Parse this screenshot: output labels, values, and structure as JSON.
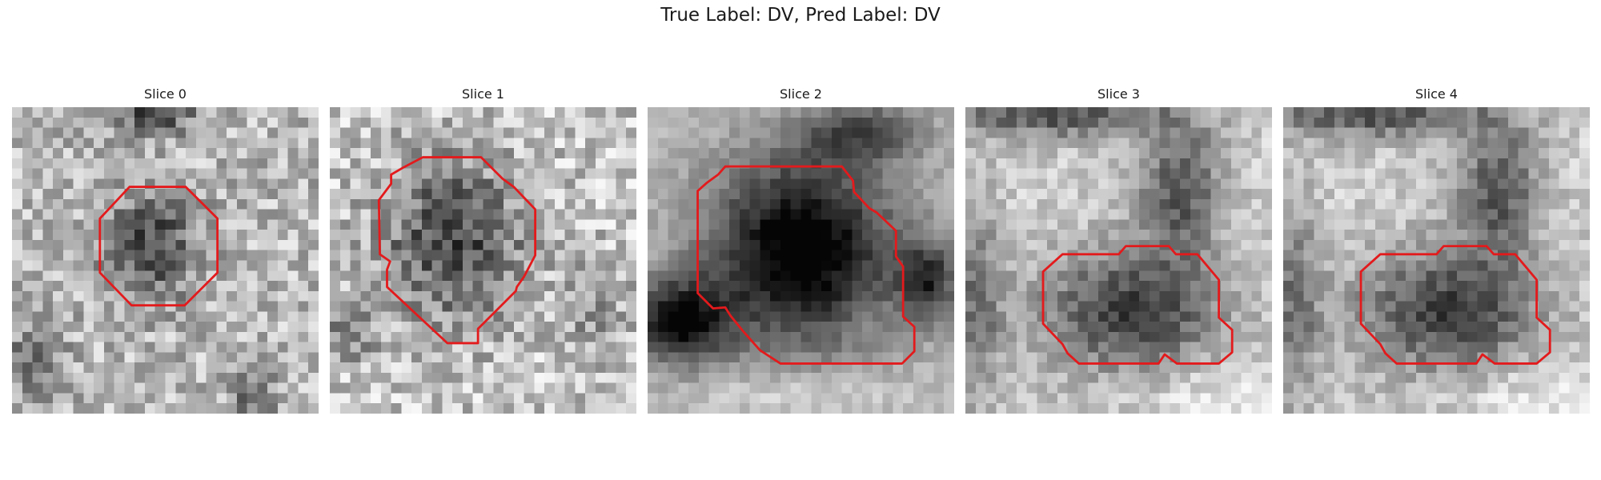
{
  "figure": {
    "title": "True Label: DV, Pred Label: DV",
    "contour_color": "#e31a1c",
    "colormap": "grayscale",
    "panels": [
      {
        "title": "Slice 0"
      },
      {
        "title": "Slice 1"
      },
      {
        "title": "Slice 2"
      },
      {
        "title": "Slice 3"
      },
      {
        "title": "Slice 4"
      }
    ]
  }
}
